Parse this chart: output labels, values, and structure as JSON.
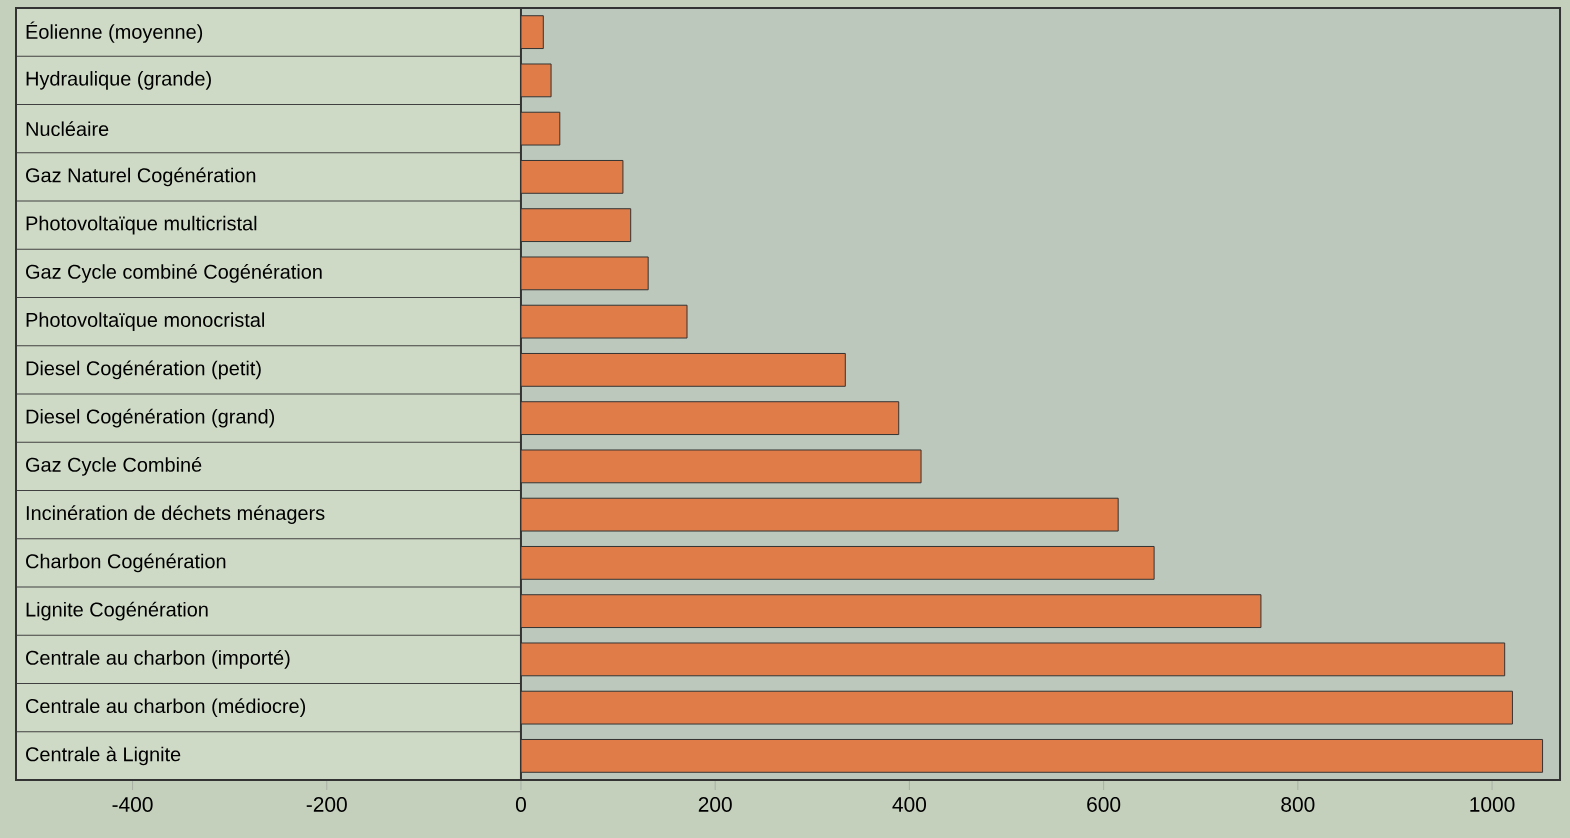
{
  "chart_data": {
    "type": "bar",
    "orientation": "horizontal",
    "categories": [
      "Éolienne (moyenne)",
      "Hydraulique (grande)",
      "Nucléaire",
      "Gaz Naturel Cogénération",
      "Photovoltaïque multicristal",
      "Gaz Cycle combiné Cogénération",
      "Photovoltaïque monocristal",
      "Diesel Cogénération (petit)",
      "Diesel Cogénération (grand)",
      "Gaz Cycle Combiné",
      "Incinération  de déchets ménagers",
      "Charbon Cogénération",
      "Lignite Cogénération",
      "Centrale au charbon (importé)",
      "Centrale au charbon (médiocre)",
      "Centrale à Lignite"
    ],
    "values": [
      23,
      31,
      40,
      105,
      113,
      131,
      171,
      334,
      389,
      412,
      615,
      652,
      762,
      1013,
      1021,
      1052
    ],
    "color": "#e07c48",
    "xlim": [
      -520,
      1070
    ],
    "xticks": [
      -400,
      -200,
      0,
      200,
      400,
      600,
      800,
      1000
    ]
  }
}
